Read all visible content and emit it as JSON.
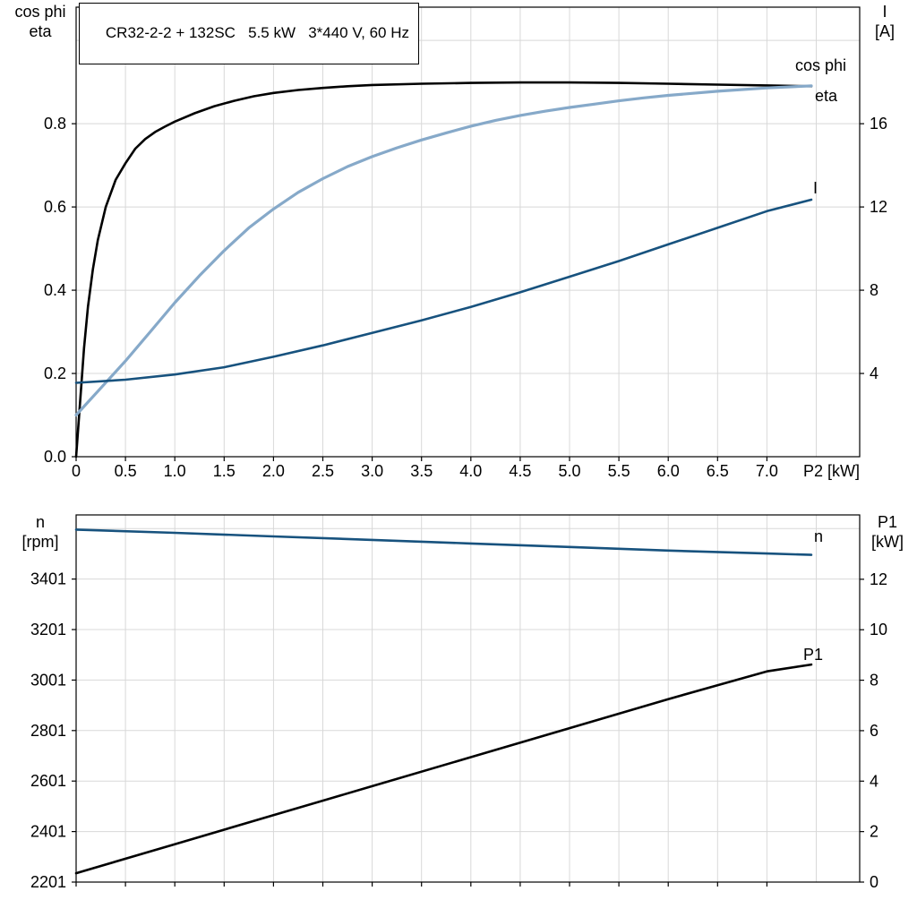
{
  "title_box": {
    "text": "CR32-2-2 + 132SC   5.5 kW   3*440 V, 60 Hz"
  },
  "colors": {
    "grid": "#d8d8d8",
    "axis": "#000000",
    "eta": "#000000",
    "cos_phi": "#86a9c9",
    "current": "#17527e",
    "speed": "#17527e",
    "p1": "#000000"
  },
  "chart_data": [
    {
      "type": "line",
      "title": "CR32-2-2 + 132SC   5.5 kW   3*440 V, 60 Hz",
      "xlabel": "P2 [kW]",
      "left_axis_title": [
        "cos phi",
        "eta"
      ],
      "right_axis_title": [
        "I",
        "[A]"
      ],
      "xlim": [
        0,
        7.94
      ],
      "ylim_left": [
        0,
        1.08
      ],
      "ylim_right": [
        0,
        21.6
      ],
      "grid": true,
      "legend": "line-end-labels",
      "xticks": [
        0,
        0.5,
        1,
        1.5,
        2,
        2.5,
        3,
        3.5,
        4,
        4.5,
        5,
        5.5,
        6,
        6.5,
        7
      ],
      "xtick_labels": [
        "0",
        "0.5",
        "1.0",
        "1.5",
        "2.0",
        "2.5",
        "3.0",
        "3.5",
        "4.0",
        "4.5",
        "5.0",
        "5.5",
        "6.0",
        "6.5",
        "7.0"
      ],
      "yticks_left": [
        0,
        0.2,
        0.4,
        0.6,
        0.8
      ],
      "ytick_labels_left": [
        "0.0",
        "0.2",
        "0.4",
        "0.6",
        "0.8"
      ],
      "yticks_right": [
        4,
        8,
        12,
        16
      ],
      "ytick_labels_right": [
        "4",
        "8",
        "12",
        "16"
      ],
      "series": [
        {
          "name": "eta",
          "axis": "left",
          "color": "#000000",
          "width": 2.6,
          "points": [
            [
              0,
              0
            ],
            [
              0.04,
              0.13
            ],
            [
              0.08,
              0.26
            ],
            [
              0.12,
              0.36
            ],
            [
              0.17,
              0.45
            ],
            [
              0.22,
              0.52
            ],
            [
              0.3,
              0.6
            ],
            [
              0.4,
              0.665
            ],
            [
              0.5,
              0.705
            ],
            [
              0.6,
              0.74
            ],
            [
              0.7,
              0.763
            ],
            [
              0.8,
              0.78
            ],
            [
              0.9,
              0.793
            ],
            [
              1,
              0.805
            ],
            [
              1.2,
              0.825
            ],
            [
              1.4,
              0.842
            ],
            [
              1.6,
              0.855
            ],
            [
              1.8,
              0.866
            ],
            [
              2,
              0.874
            ],
            [
              2.25,
              0.881
            ],
            [
              2.5,
              0.886
            ],
            [
              2.75,
              0.89
            ],
            [
              3,
              0.893
            ],
            [
              3.5,
              0.896
            ],
            [
              4,
              0.898
            ],
            [
              4.5,
              0.899
            ],
            [
              5,
              0.899
            ],
            [
              5.5,
              0.898
            ],
            [
              6,
              0.896
            ],
            [
              6.5,
              0.894
            ],
            [
              7,
              0.892
            ],
            [
              7.45,
              0.89
            ]
          ]
        },
        {
          "name": "cos phi",
          "axis": "left",
          "color": "#86a9c9",
          "width": 3.2,
          "points": [
            [
              0,
              0.1
            ],
            [
              0.25,
              0.165
            ],
            [
              0.5,
              0.23
            ],
            [
              0.75,
              0.3
            ],
            [
              1,
              0.37
            ],
            [
              1.25,
              0.435
            ],
            [
              1.5,
              0.495
            ],
            [
              1.75,
              0.55
            ],
            [
              2,
              0.595
            ],
            [
              2.25,
              0.635
            ],
            [
              2.5,
              0.668
            ],
            [
              2.75,
              0.697
            ],
            [
              3,
              0.721
            ],
            [
              3.25,
              0.742
            ],
            [
              3.5,
              0.761
            ],
            [
              3.75,
              0.778
            ],
            [
              4,
              0.794
            ],
            [
              4.25,
              0.808
            ],
            [
              4.5,
              0.82
            ],
            [
              4.75,
              0.83
            ],
            [
              5,
              0.839
            ],
            [
              5.25,
              0.847
            ],
            [
              5.5,
              0.855
            ],
            [
              5.75,
              0.862
            ],
            [
              6,
              0.868
            ],
            [
              6.25,
              0.873
            ],
            [
              6.5,
              0.878
            ],
            [
              6.75,
              0.882
            ],
            [
              7,
              0.886
            ],
            [
              7.45,
              0.891
            ]
          ]
        },
        {
          "name": "I",
          "axis": "right",
          "color": "#17527e",
          "width": 2.6,
          "points": [
            [
              0,
              3.55
            ],
            [
              0.5,
              3.7
            ],
            [
              1,
              3.95
            ],
            [
              1.5,
              4.3
            ],
            [
              2,
              4.8
            ],
            [
              2.5,
              5.35
            ],
            [
              3,
              5.95
            ],
            [
              3.5,
              6.55
            ],
            [
              4,
              7.2
            ],
            [
              4.5,
              7.9
            ],
            [
              5,
              8.65
            ],
            [
              5.5,
              9.4
            ],
            [
              6,
              10.2
            ],
            [
              6.5,
              11
            ],
            [
              7,
              11.8
            ],
            [
              7.45,
              12.35
            ]
          ]
        }
      ]
    },
    {
      "type": "line",
      "xlabel": "",
      "left_axis_title": [
        "n",
        "[rpm]"
      ],
      "right_axis_title": [
        "P1",
        "[kW]"
      ],
      "xlim": [
        0,
        7.94
      ],
      "ylim_left": [
        2201,
        3655
      ],
      "ylim_right": [
        0,
        14.55
      ],
      "grid": true,
      "legend": "line-end-labels",
      "xticks": [
        0,
        0.5,
        1,
        1.5,
        2,
        2.5,
        3,
        3.5,
        4,
        4.5,
        5,
        5.5,
        6,
        6.5,
        7
      ],
      "xtick_labels": null,
      "yticks_left": [
        2201,
        2401,
        2601,
        2801,
        3001,
        3201,
        3401
      ],
      "ytick_labels_left": [
        "2201",
        "2401",
        "2601",
        "2801",
        "3001",
        "3201",
        "3401"
      ],
      "yticks_right": [
        0,
        2,
        4,
        6,
        8,
        10,
        12
      ],
      "ytick_labels_right": [
        "0",
        "2",
        "4",
        "6",
        "8",
        "10",
        "12"
      ],
      "series": [
        {
          "name": "n",
          "axis": "left",
          "color": "#17527e",
          "width": 2.6,
          "points": [
            [
              0,
              3597
            ],
            [
              1,
              3584
            ],
            [
              2,
              3570
            ],
            [
              3,
              3556
            ],
            [
              4,
              3542
            ],
            [
              5,
              3528
            ],
            [
              6,
              3514
            ],
            [
              7,
              3502
            ],
            [
              7.45,
              3497
            ]
          ]
        },
        {
          "name": "P1",
          "axis": "right",
          "color": "#000000",
          "width": 2.6,
          "points": [
            [
              0,
              0.35
            ],
            [
              1,
              1.5
            ],
            [
              2,
              2.65
            ],
            [
              3,
              3.8
            ],
            [
              4,
              4.95
            ],
            [
              5,
              6.1
            ],
            [
              6,
              7.25
            ],
            [
              7,
              8.35
            ],
            [
              7.45,
              8.62
            ]
          ]
        }
      ]
    }
  ]
}
